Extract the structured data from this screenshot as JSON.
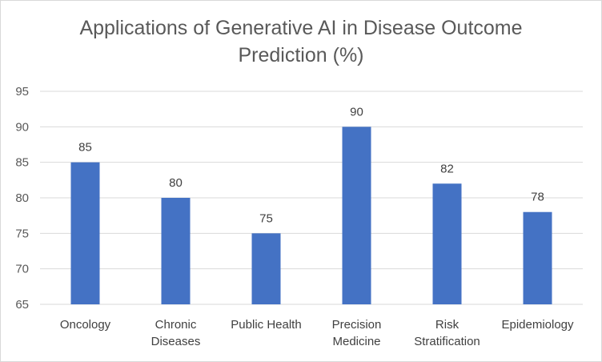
{
  "chart_data": {
    "type": "bar",
    "title_lines": [
      "Applications of Generative AI in Disease Outcome",
      "Prediction (%)"
    ],
    "categories": [
      [
        "Oncology"
      ],
      [
        "Chronic",
        "Diseases"
      ],
      [
        "Public Health"
      ],
      [
        "Precision",
        "Medicine"
      ],
      [
        "Risk",
        "Stratification"
      ],
      [
        "Epidemiology"
      ]
    ],
    "values": [
      85,
      80,
      75,
      90,
      82,
      78
    ],
    "ylim": [
      65,
      95
    ],
    "yticks": [
      65,
      70,
      75,
      80,
      85,
      90,
      95
    ],
    "grid": true,
    "legend": "none",
    "bar_color": "#4472c4",
    "grid_color": "#d9d9d9"
  }
}
